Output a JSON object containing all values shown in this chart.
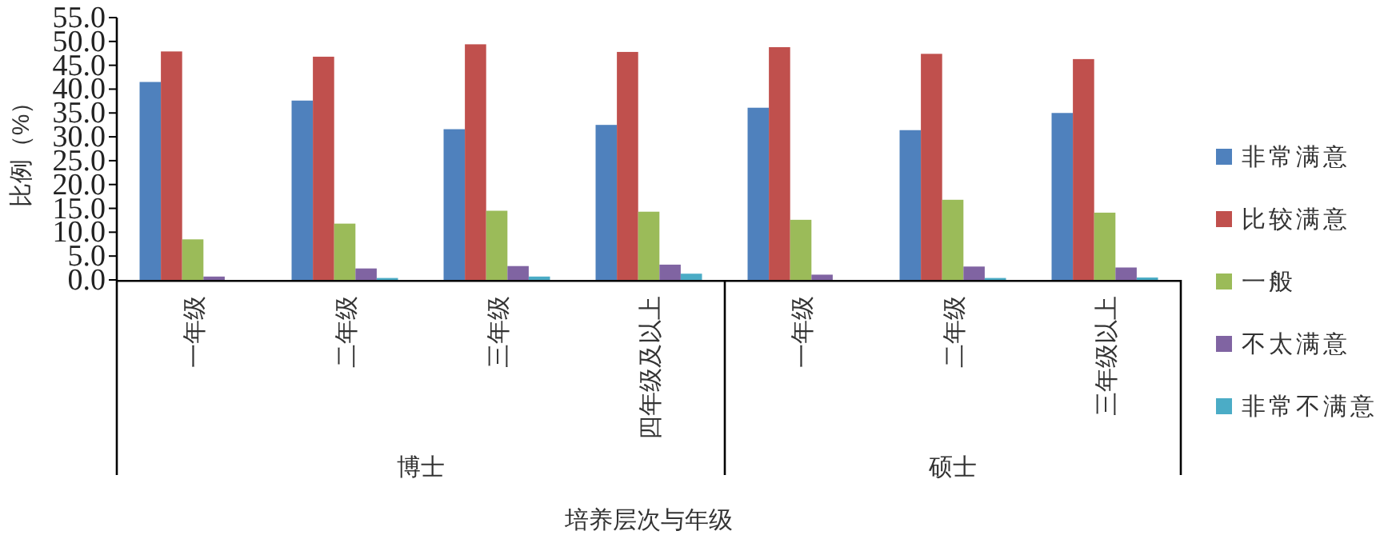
{
  "chart_data": {
    "type": "bar",
    "xlabel": "培养层次与年级",
    "ylabel": "比例（%）",
    "categories": [
      "一年级",
      "二年级",
      "三年级",
      "四年级及以上",
      "一年级",
      "二年级",
      "三年级以上"
    ],
    "annotations": [
      "博士",
      "硕士"
    ],
    "ylim": [
      0,
      55
    ],
    "yticks": [
      {
        "value": 0,
        "label": "0.0"
      },
      {
        "value": 5,
        "label": "5.0"
      },
      {
        "value": 10,
        "label": "10.0"
      },
      {
        "value": 15,
        "label": "15.0"
      },
      {
        "value": 20,
        "label": "20.0"
      },
      {
        "value": 25,
        "label": "25.0"
      },
      {
        "value": 30,
        "label": "30.0"
      },
      {
        "value": 35,
        "label": "35.0"
      },
      {
        "value": 40,
        "label": "40.0"
      },
      {
        "value": 45,
        "label": "45.0"
      },
      {
        "value": 50,
        "label": "50.0"
      },
      {
        "value": 55,
        "label": "55.0"
      }
    ],
    "legend": "right",
    "grid": false,
    "series": [
      {
        "name": "非常满意",
        "color": "#4f81bd",
        "values": [
          41.5,
          37.6,
          31.6,
          32.5,
          36.1,
          31.4,
          35.0
        ]
      },
      {
        "name": "比较满意",
        "color": "#c0504d",
        "values": [
          47.9,
          46.8,
          49.4,
          47.8,
          48.8,
          47.4,
          46.3
        ]
      },
      {
        "name": "一般",
        "color": "#9bbb59",
        "values": [
          8.5,
          11.8,
          14.5,
          14.3,
          12.6,
          16.8,
          14.1
        ]
      },
      {
        "name": "不太满意",
        "color": "#8064a2",
        "values": [
          0.7,
          2.4,
          2.9,
          3.2,
          1.1,
          2.8,
          2.6
        ]
      },
      {
        "name": "非常不满意",
        "color": "#4bacc6",
        "values": [
          null,
          0.4,
          0.7,
          1.3,
          null,
          0.4,
          0.5
        ]
      }
    ]
  }
}
